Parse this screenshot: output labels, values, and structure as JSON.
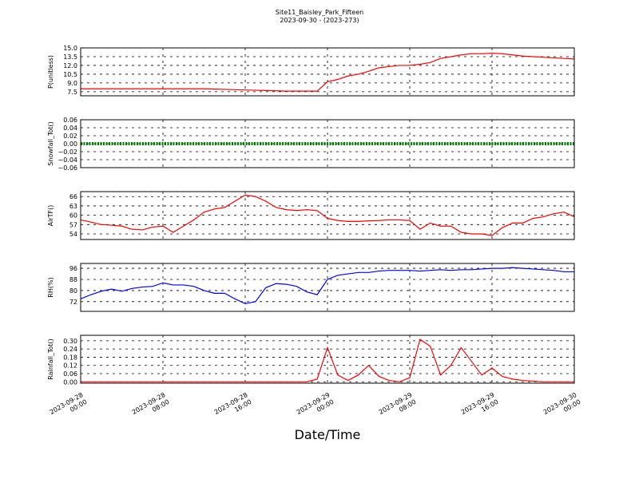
{
  "chart_data": {
    "type": "line",
    "title": "Site11_Baisley_Park_Fifteen",
    "subtitle": "2023-09-30 - (2023-273)",
    "xlabel": "Date/Time",
    "x": [
      "2023-09-28 00:00",
      "2023-09-28 01:00",
      "2023-09-28 02:00",
      "2023-09-28 03:00",
      "2023-09-28 04:00",
      "2023-09-28 05:00",
      "2023-09-28 06:00",
      "2023-09-28 07:00",
      "2023-09-28 08:00",
      "2023-09-28 09:00",
      "2023-09-28 10:00",
      "2023-09-28 11:00",
      "2023-09-28 12:00",
      "2023-09-28 13:00",
      "2023-09-28 14:00",
      "2023-09-28 15:00",
      "2023-09-28 16:00",
      "2023-09-28 17:00",
      "2023-09-28 18:00",
      "2023-09-28 19:00",
      "2023-09-28 20:00",
      "2023-09-28 21:00",
      "2023-09-28 22:00",
      "2023-09-28 23:00",
      "2023-09-29 00:00",
      "2023-09-29 01:00",
      "2023-09-29 02:00",
      "2023-09-29 03:00",
      "2023-09-29 04:00",
      "2023-09-29 05:00",
      "2023-09-29 06:00",
      "2023-09-29 07:00",
      "2023-09-29 08:00",
      "2023-09-29 09:00",
      "2023-09-29 10:00",
      "2023-09-29 11:00",
      "2023-09-29 12:00",
      "2023-09-29 13:00",
      "2023-09-29 14:00",
      "2023-09-29 15:00",
      "2023-09-29 16:00",
      "2023-09-29 17:00",
      "2023-09-29 18:00",
      "2023-09-29 19:00",
      "2023-09-29 20:00",
      "2023-09-29 21:00",
      "2023-09-29 22:00",
      "2023-09-29 23:00",
      "2023-09-30 00:00"
    ],
    "xlim": [
      "2023-09-28 00:00",
      "2023-09-30 00:00"
    ],
    "xticks": [
      "2023-09-28 00:00",
      "2023-09-28 08:00",
      "2023-09-28 16:00",
      "2023-09-29 00:00",
      "2023-09-29 08:00",
      "2023-09-29 16:00",
      "2023-09-30 00:00"
    ],
    "grid": true,
    "panels": [
      {
        "ylabel": "P(unitless)",
        "ylim": [
          6.8,
          15.0
        ],
        "yticks": [
          {
            "value": 7.5,
            "label": "7.5"
          },
          {
            "value": 9,
            "label": "9.0"
          },
          {
            "value": 10.5,
            "label": "10.5"
          },
          {
            "value": 12,
            "label": "12.0"
          },
          {
            "value": 13.5,
            "label": "13.5"
          },
          {
            "value": 15,
            "label": "15.0"
          }
        ],
        "series": [
          {
            "color": "#ff0000",
            "values": [
              8.0,
              8.0,
              8.0,
              8.0,
              8.0,
              8.0,
              8.0,
              8.0,
              8.0,
              8.0,
              8.0,
              8.0,
              8.0,
              7.95,
              7.9,
              7.85,
              7.8,
              7.75,
              7.7,
              7.65,
              7.6,
              7.6,
              7.6,
              7.6,
              9.2,
              9.6,
              10.2,
              10.5,
              11.0,
              11.6,
              11.8,
              12.0,
              12.0,
              12.2,
              12.5,
              13.2,
              13.5,
              13.8,
              14.0,
              14.0,
              14.1,
              14.0,
              13.8,
              13.6,
              13.5,
              13.4,
              13.3,
              13.2,
              13.1
            ]
          }
        ]
      },
      {
        "ylabel": "Snowfall_Tot()",
        "ylim": [
          -0.06,
          0.06
        ],
        "yticks": [
          {
            "value": -0.06,
            "label": "−0.06"
          },
          {
            "value": -0.04,
            "label": "−0.04"
          },
          {
            "value": -0.02,
            "label": "−0.02"
          },
          {
            "value": 0,
            "label": "0.00"
          },
          0.02,
          0.04,
          0.06
        ],
        "series": [
          {
            "color": "#008000",
            "style": "dotted",
            "values": [
              0,
              0,
              0,
              0,
              0,
              0,
              0,
              0,
              0,
              0,
              0,
              0,
              0,
              0,
              0,
              0,
              0,
              0,
              0,
              0,
              0,
              0,
              0,
              0,
              0,
              0,
              0,
              0,
              0,
              0,
              0,
              0,
              0,
              0,
              0,
              0,
              0,
              0,
              0,
              0,
              0,
              0,
              0,
              0,
              0,
              0,
              0,
              0,
              0
            ]
          }
        ]
      },
      {
        "ylabel": "AirTF()",
        "ylim": [
          52.2,
          67.6
        ],
        "yticks": [
          54,
          57,
          60,
          63,
          66
        ],
        "series": [
          {
            "color": "#ff0000",
            "values": [
              58.5,
              57.8,
              57,
              56.8,
              56.5,
              55.5,
              55.3,
              56.2,
              56.5,
              54.5,
              56.5,
              58.5,
              61,
              62,
              62.5,
              64.5,
              66.5,
              66,
              64.5,
              62.5,
              61.8,
              61.5,
              61.8,
              61.5,
              59,
              58.3,
              58,
              58,
              58.2,
              58.3,
              58.5,
              58.5,
              58.3,
              55.5,
              57.5,
              56.5,
              56.5,
              54.5,
              54,
              54,
              53.5,
              56,
              57.5,
              57.5,
              59,
              59.5,
              60.5,
              61,
              59.5
            ]
          }
        ]
      },
      {
        "ylabel": "RH(%)",
        "ylim": [
          65,
          99.5
        ],
        "yticks": [
          72,
          80,
          88,
          96
        ],
        "series": [
          {
            "color": "#0000ff",
            "values": [
              74,
              77,
              79.5,
              81,
              79.5,
              81.5,
              82.5,
              83,
              85.5,
              84,
              84,
              83,
              80,
              78,
              78,
              74,
              70.5,
              72,
              82,
              85,
              84.5,
              83,
              79,
              77,
              88,
              91,
              92,
              93,
              93,
              94,
              94.5,
              94.5,
              94.5,
              94,
              94.5,
              95,
              94.5,
              95,
              95,
              95.5,
              96,
              96,
              96.5,
              96,
              95.5,
              95,
              94.5,
              93.5,
              93.5
            ]
          }
        ]
      },
      {
        "ylabel": "Rainfall_Tot()",
        "ylim": [
          -0.01,
          0.34
        ],
        "yticks": [
          {
            "value": 0,
            "label": "0.00"
          },
          0.06,
          0.12,
          0.18,
          0.24,
          {
            "value": 0.3,
            "label": "0.30"
          }
        ],
        "series": [
          {
            "color": "#ff0000",
            "values": [
              0,
              0,
              0,
              0,
              0,
              0,
              0,
              0,
              0,
              0,
              0,
              0,
              0,
              0,
              0,
              0,
              0,
              0,
              0,
              0,
              0,
              0,
              0,
              0.02,
              0.25,
              0.05,
              0.01,
              0.05,
              0.12,
              0.04,
              0.01,
              0,
              0.03,
              0.31,
              0.26,
              0.05,
              0.12,
              0.25,
              0.15,
              0.05,
              0.1,
              0.04,
              0.02,
              0.01,
              0.005,
              0,
              0,
              0,
              0
            ]
          }
        ]
      }
    ]
  }
}
